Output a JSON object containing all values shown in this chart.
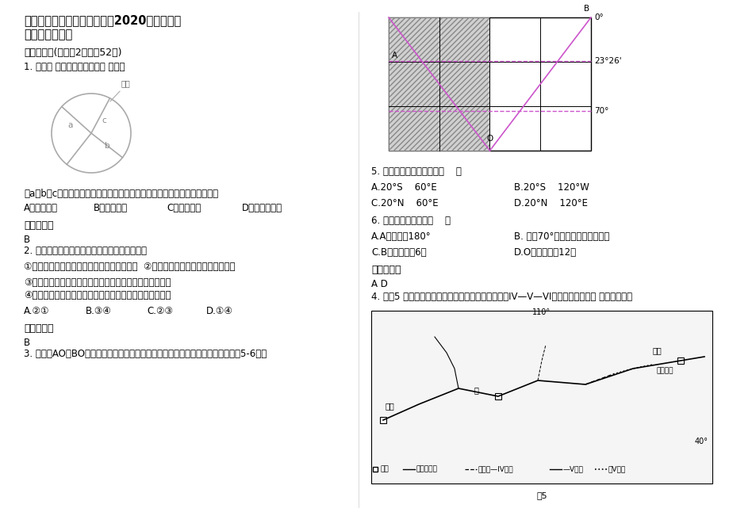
{
  "title": "四川省广安市岳池县石垭中学2020年高三地理联考试题含解析",
  "bg_color": "#ffffff",
  "section1": "一、选择题(每小题2分，共52分)",
  "q1_text": "1. 读下图 区位因素构成示意图 ，完成",
  "q1_figure_label": "其他",
  "q1_labels": [
    "a",
    "b",
    "c"
  ],
  "q1_body": "若a、b、c分别代表工业区位因素中的原料、能源和市场，则图示工业部门是",
  "q1_options": [
    "A．炼铝工业",
    "B．制糖工业",
    "C．航天工业",
    "D．服装加工业"
  ],
  "ref_ans_label": "参考答案：",
  "ans1": "B",
  "q2_text": "2. 下列能正确反映我国农业地域性特点的例子是",
  "q2_opt1": "①在松嫩平原一带大力发展排橘、香蕉等水果  ②在南方山地、丘陵大规模开垦梯田",
  "q2_opt2": "③在内蒙古高原东部和北部，逐步实行退耕还牧、退耕还草",
  "q2_opt3": "④在长江中下游地区种植水稻、小麦、棉花、油菜等农作物",
  "q2_choices": [
    "A.②①",
    "B.③④",
    "C.②③",
    "D.①④"
  ],
  "ans2": "B",
  "q3_text": "3. 下图中AO和BO为昏晨线，阴影所在的经度范围与全球其他地区日期不同。读图5-6题。",
  "q5_text": "5. 此时太阳直射点的坐标（    ）",
  "q5_A": "A.20°S    60°E",
  "q5_B": "B.20°S    120°W",
  "q5_C": "C.20°N    60°E",
  "q5_D": "D.20°N    120°E",
  "q6_text": "6. 下列叙述错误的是（    ）",
  "q6_A": "A.A地经度是180°",
  "q6_B": "B. 南纬70°及其以南地区出现极昼",
  "q6_C": "C.B地地方时是6点",
  "q6_D": "D.O地地方时是12点",
  "ref_ans_label2": "参考答案：",
  "ans_ad": "A D",
  "q4_text": "4. 读图5 黄河干支流部分河段水质状况分布图（图中IV—V—VI，水质从优到劣） ，完成下题。",
  "map_note": "图5",
  "text_color": "#000000",
  "gray_color": "#888888"
}
